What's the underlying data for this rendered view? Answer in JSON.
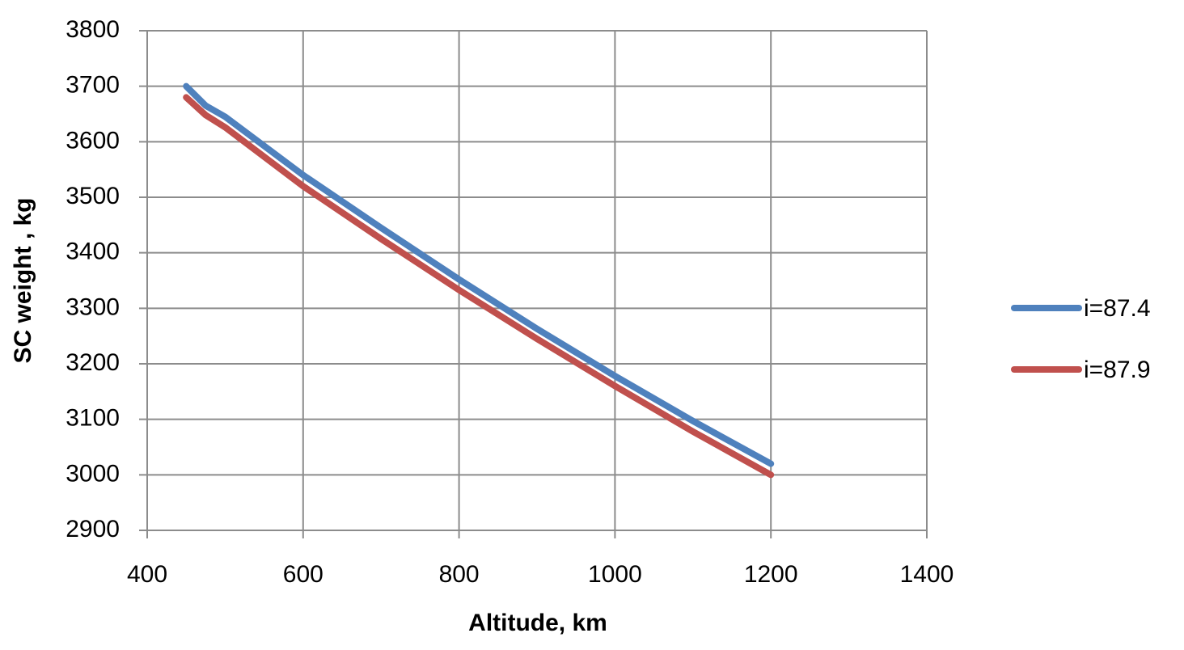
{
  "chart_data": {
    "type": "line",
    "x_label": "Altitude, km",
    "y_label": "SC weight , kg",
    "x": [
      450,
      475,
      500,
      600,
      700,
      800,
      900,
      1000,
      1100,
      1200
    ],
    "series": [
      {
        "name": "i=87.4",
        "color": "#4f81bd",
        "values": [
          3700,
          3665,
          3645,
          3540,
          3445,
          3352,
          3263,
          3178,
          3097,
          3020
        ]
      },
      {
        "name": "i=87.9",
        "color": "#c0504d",
        "values": [
          3680,
          3648,
          3626,
          3520,
          3425,
          3333,
          3245,
          3160,
          3078,
          3000
        ]
      }
    ],
    "xlim": [
      400,
      1400
    ],
    "xticks": [
      400,
      600,
      800,
      1000,
      1200,
      1400
    ],
    "ylim": [
      2900,
      3800
    ],
    "yticks": [
      2900,
      3000,
      3100,
      3200,
      3300,
      3400,
      3500,
      3600,
      3700,
      3800
    ],
    "grid": true,
    "legend": "right"
  }
}
